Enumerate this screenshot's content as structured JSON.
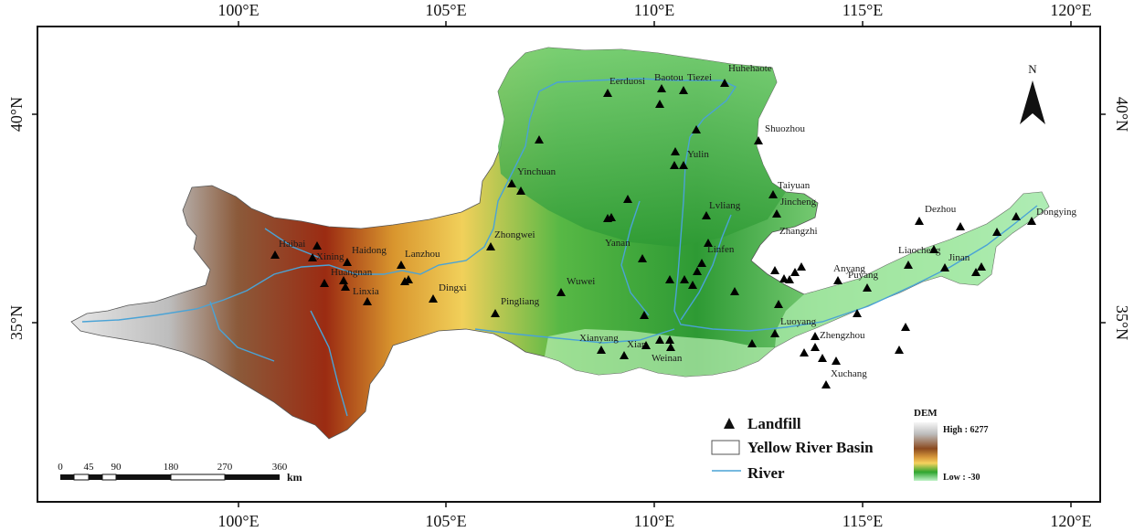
{
  "map": {
    "lon_ticks_top": [
      "100°E",
      "105°E",
      "110°E",
      "115°E",
      "120°E"
    ],
    "lon_ticks_bottom": [
      "100°E",
      "105°E",
      "110°E",
      "115°E",
      "120°E"
    ],
    "lat_ticks_left": [
      "40°N",
      "35°N"
    ],
    "lat_ticks_right": [
      "40°N",
      "35°N"
    ],
    "north_label": "N",
    "cities": [
      "Huhehaote",
      "Baotou",
      "Eerduosi",
      "Tiezei",
      "Shuozhou",
      "Yulin",
      "Yinchuan",
      "Taiyuan",
      "Jincheng",
      "Lvliang",
      "Dezhou",
      "Dongying",
      "Linfen",
      "Zhangzhi",
      "Liaocheng",
      "Jinan",
      "Yanan",
      "Zhongwei",
      "Xining",
      "Haidong",
      "Lanzhou",
      "Haibai",
      "Huangnan",
      "Linxia",
      "Dingxi",
      "Pingliang",
      "Wuwei",
      "Anyang",
      "Puyang",
      "Luoyang",
      "Zhengzhou",
      "Xianyang",
      "Xian",
      "Weinan",
      "Xuchang"
    ],
    "landfill_color": "#000000",
    "river_color": "#4aa3d6"
  },
  "legend": {
    "landfill": "Landfill",
    "basin": "Yellow River Basin",
    "river": "River"
  },
  "dem": {
    "title": "DEM",
    "high": "High : 6277",
    "low": "Low : -30",
    "colors": [
      "#f7f7f7",
      "#bfbfbf",
      "#8b4a1f",
      "#d99a3c",
      "#f5d25e",
      "#2fa52f",
      "#bff2c7"
    ]
  },
  "scale": {
    "labels": [
      "0",
      "45",
      "90",
      "180",
      "270",
      "360"
    ],
    "unit": "km"
  }
}
